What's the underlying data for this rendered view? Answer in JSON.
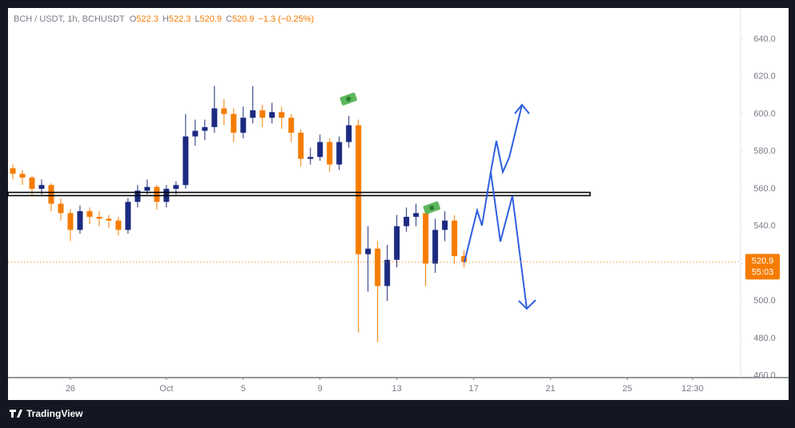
{
  "chart_data": {
    "type": "candlestick",
    "symbol": "BCH / USDT, 1h, BCHUSDT",
    "ohlc_header": [
      {
        "label": "O",
        "value": 522.3
      },
      {
        "label": "H",
        "value": 522.3
      },
      {
        "label": "L",
        "value": 520.9
      },
      {
        "label": "C",
        "value": 520.9
      }
    ],
    "change": "−1.3 (−0.25%)",
    "last_price": {
      "value": 520.9,
      "label": "520.9"
    },
    "countdown": "55:03",
    "brand": "TradingView",
    "up_color": "#1c2a80",
    "down_color": "#f57c00",
    "grid": false,
    "xlim": [
      -3.25,
      34.9
    ],
    "xticks": [
      {
        "value": 0,
        "label": "26"
      },
      {
        "value": 5,
        "label": "Oct"
      },
      {
        "value": 9,
        "label": "5"
      },
      {
        "value": 13,
        "label": "9"
      },
      {
        "value": 17,
        "label": "13"
      },
      {
        "value": 21,
        "label": "17"
      },
      {
        "value": 25,
        "label": "21"
      },
      {
        "value": 29,
        "label": "25"
      },
      {
        "value": 32.4,
        "label": "12:30"
      }
    ],
    "ylim": [
      459,
      656.7
    ],
    "yticks": [
      {
        "value": 460,
        "label": "460.0"
      },
      {
        "value": 480,
        "label": "480.0"
      },
      {
        "value": 500,
        "label": "500.0"
      },
      {
        "value": 520,
        "label": "520.0"
      },
      {
        "value": 540,
        "label": "540.0"
      },
      {
        "value": 560,
        "label": "560.0"
      },
      {
        "value": 580,
        "label": "580.0"
      },
      {
        "value": 600,
        "label": "600.0"
      },
      {
        "value": 620,
        "label": "620.0"
      },
      {
        "value": 640,
        "label": "640.0"
      }
    ],
    "x": [
      -3,
      -2.5,
      -2,
      -1.5,
      -1,
      -0.5,
      0,
      0.5,
      1,
      1.5,
      2,
      2.5,
      3,
      3.5,
      4,
      4.5,
      5,
      5.5,
      6,
      6.5,
      7,
      7.5,
      8,
      8.5,
      9,
      9.5,
      10,
      10.5,
      11,
      11.5,
      12,
      12.5,
      13,
      13.5,
      14,
      14.5,
      15,
      15.5,
      16,
      16.5,
      17,
      17.5,
      18,
      18.5,
      19,
      19.5,
      20,
      20.5
    ],
    "open": [
      571,
      568,
      566,
      560,
      562,
      552,
      547,
      538,
      548,
      545,
      544,
      543,
      538,
      553,
      559,
      561,
      553,
      560,
      562,
      588,
      591,
      593,
      603,
      600,
      590,
      598,
      602,
      598,
      601,
      598,
      590,
      576,
      577,
      585,
      573,
      585,
      594,
      525,
      528,
      508,
      522,
      540,
      545,
      547,
      520,
      538,
      543,
      524
    ],
    "high": [
      573,
      570,
      567,
      565,
      563,
      555,
      549,
      551,
      550,
      548,
      546,
      545,
      555,
      562,
      565,
      562,
      562,
      564,
      600,
      597,
      597,
      615,
      608,
      603,
      604,
      615,
      605,
      606,
      604,
      600,
      592,
      582,
      589,
      587,
      588,
      599,
      597,
      540,
      532,
      530,
      546,
      550,
      552,
      549,
      544,
      548,
      546,
      527
    ],
    "low": [
      565,
      562,
      556,
      557,
      548,
      543,
      532,
      536,
      541,
      540,
      539,
      535,
      536,
      550,
      557,
      549,
      550,
      557,
      560,
      583,
      586,
      590,
      594,
      585,
      587,
      595,
      593,
      595,
      592,
      585,
      572,
      573,
      575,
      569,
      570,
      582,
      483,
      505,
      478,
      500,
      518,
      537,
      540,
      508,
      515,
      532,
      520,
      518
    ],
    "close": [
      568,
      566,
      560,
      562,
      552,
      547,
      538,
      548,
      545,
      544,
      543,
      538,
      553,
      559,
      561,
      553,
      560,
      562,
      588,
      591,
      593,
      603,
      600,
      590,
      598,
      602,
      598,
      601,
      598,
      590,
      576,
      577,
      585,
      573,
      585,
      594,
      525,
      528,
      508,
      522,
      540,
      545,
      547,
      520,
      538,
      543,
      524,
      520.9
    ]
  }
}
